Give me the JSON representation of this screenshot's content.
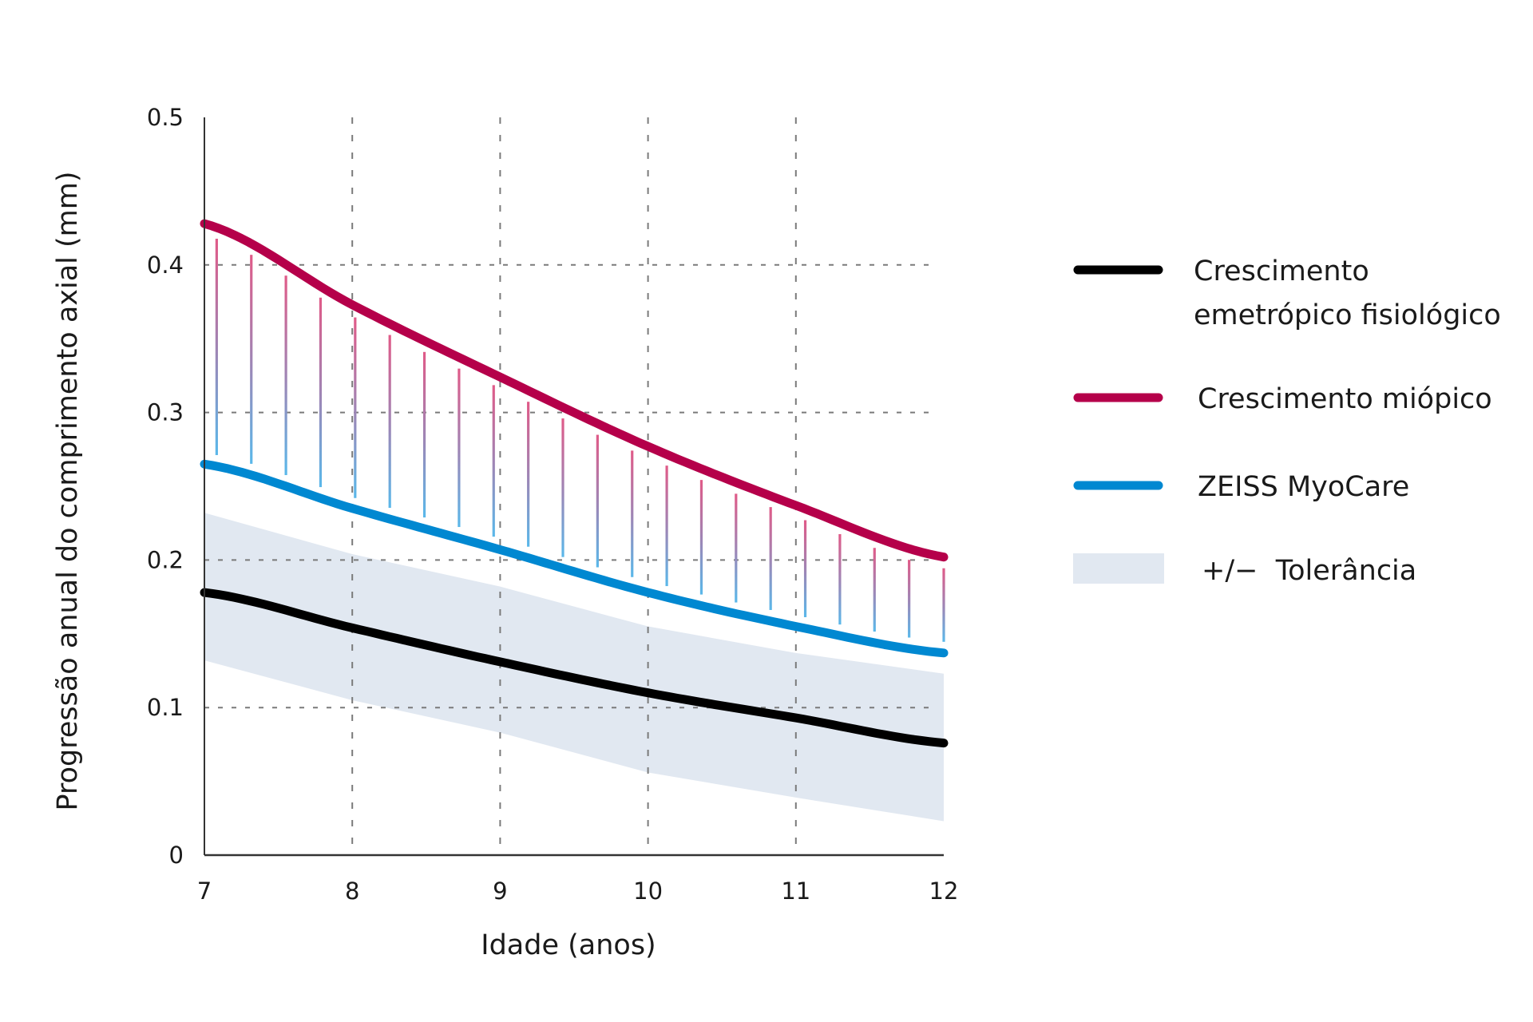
{
  "chart_data": {
    "type": "line",
    "title": "",
    "xlabel": "Idade (anos)",
    "ylabel": "Progressão anual do comprimento axial (mm)",
    "xlim": [
      7,
      12
    ],
    "ylim": [
      0,
      0.5
    ],
    "x_ticks": [
      "7",
      "8",
      "9",
      "10",
      "11",
      "12"
    ],
    "y_ticks": [
      "0",
      "0.1",
      "0.2",
      "0.3",
      "0.4",
      "0.5"
    ],
    "grid": true,
    "legend_position": "right",
    "x": [
      7,
      8,
      9,
      10,
      11,
      12
    ],
    "series": [
      {
        "name": "Crescimento emetrópico fisiológico",
        "label_lines": [
          "Crescimento",
          "emetrópico fisiológico"
        ],
        "color": "#000000",
        "values": [
          0.178,
          0.154,
          0.131,
          0.11,
          0.093,
          0.076
        ]
      },
      {
        "name": "Crescimento miópico",
        "label_lines": [
          "Crescimento miópico"
        ],
        "color": "#b5004a",
        "values": [
          0.428,
          0.373,
          0.324,
          0.277,
          0.237,
          0.202
        ]
      },
      {
        "name": "ZEISS MyoCare",
        "label_lines": [
          "ZEISS MyoCare"
        ],
        "color": "#0088d1",
        "values": [
          0.265,
          0.235,
          0.207,
          0.178,
          0.155,
          0.137
        ]
      }
    ],
    "band": {
      "name": "+/−  Tolerância",
      "label_lines": [
        "+/−  Tolerância"
      ],
      "color": "#e1e8f1",
      "upper": [
        0.232,
        0.204,
        0.182,
        0.155,
        0.137,
        0.123
      ],
      "lower": [
        0.132,
        0.105,
        0.083,
        0.056,
        0.039,
        0.023
      ]
    },
    "hatch": {
      "description_color_top": "#e05a88",
      "description_color_bottom": "#5ab8ea",
      "count": 22
    }
  }
}
